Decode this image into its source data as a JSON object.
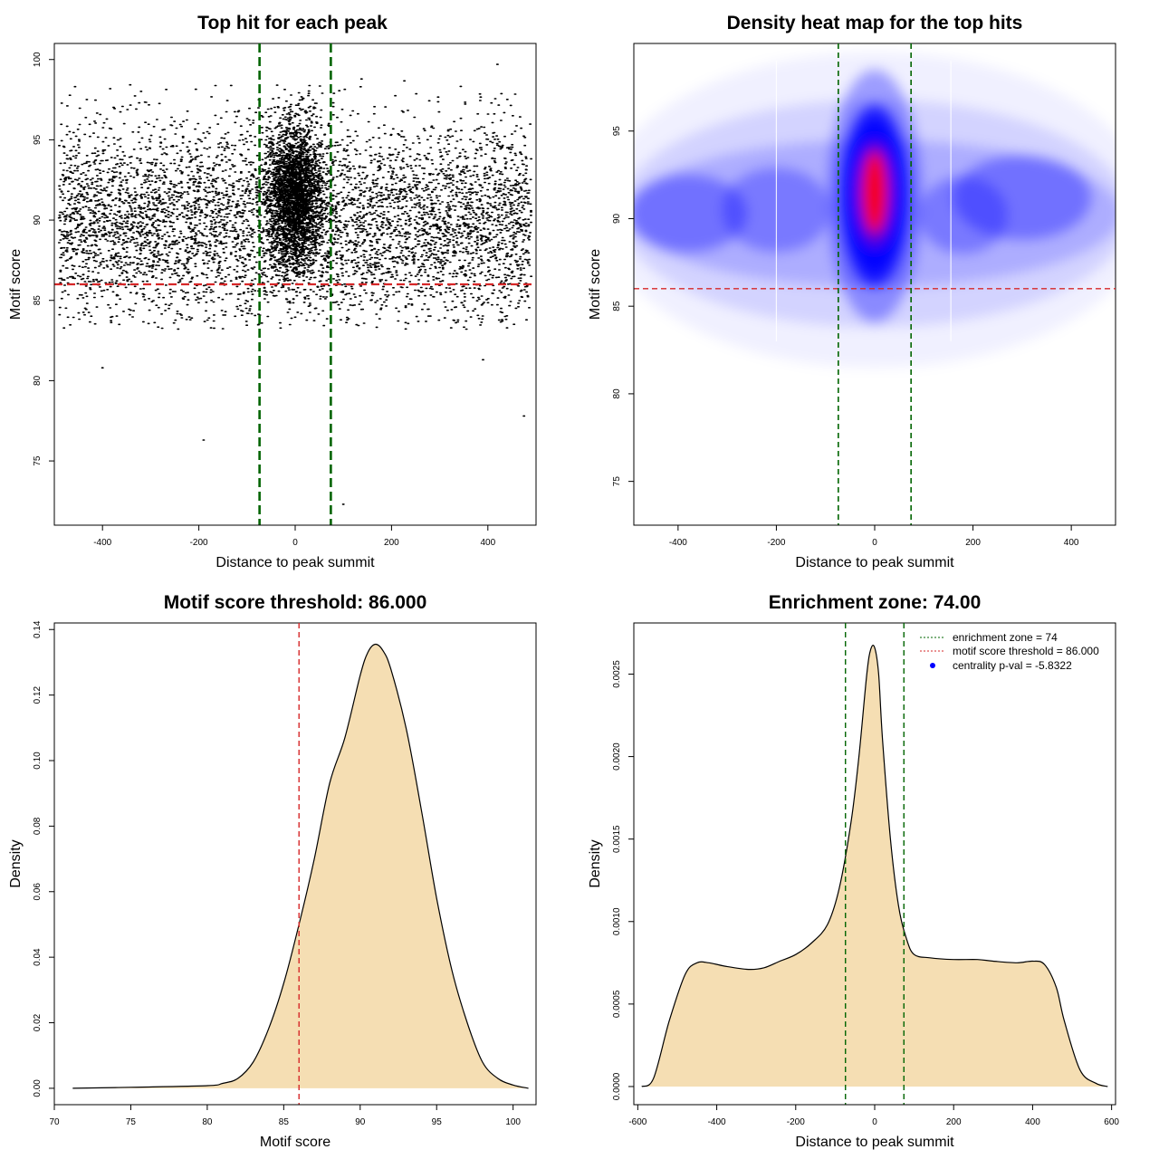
{
  "colors": {
    "threshold": "#d62728",
    "zone": "#006400",
    "fill": "#f5deb3",
    "points": "#000000",
    "heat_low": "#0000ff",
    "heat_high": "#ff0000"
  },
  "chart_data": [
    {
      "type": "scatter",
      "title": "Top hit for each peak",
      "xlabel": "Distance to peak summit",
      "ylabel": "Motif score",
      "xlim": [
        -500,
        500
      ],
      "ylim": [
        71,
        101
      ],
      "xticks": [
        -400,
        -200,
        0,
        200,
        400
      ],
      "yticks": [
        75,
        80,
        85,
        90,
        95,
        100
      ],
      "hlines": [
        86
      ],
      "vlines": [
        -74,
        74
      ],
      "point_summary": {
        "n_background": 9000,
        "n_central": 3000,
        "background_x_range": [
          -490,
          490
        ],
        "background_score_mean": 90,
        "background_score_sd": 3,
        "central_x_sd": 28,
        "central_score_mean": 91.5,
        "central_score_sd": 2.2
      },
      "outliers": [
        [
          -400,
          80.8
        ],
        [
          -190,
          76.3
        ],
        [
          100,
          72.3
        ],
        [
          420,
          99.7
        ],
        [
          475,
          77.8
        ],
        [
          390,
          81.3
        ]
      ]
    },
    {
      "type": "heatmap",
      "title": "Density heat map for the top hits",
      "xlabel": "Distance to peak summit",
      "ylabel": "Motif score",
      "xlim": [
        -490,
        490
      ],
      "ylim": [
        72.5,
        100
      ],
      "xticks": [
        -400,
        -200,
        0,
        200,
        400
      ],
      "yticks": [
        75,
        80,
        85,
        90,
        95
      ],
      "hlines": [
        86
      ],
      "vlines": [
        -74,
        74
      ],
      "faint_vlines": [
        -200,
        155
      ]
    },
    {
      "type": "area",
      "title": "Motif score threshold: 86.000",
      "xlabel": "Motif score",
      "ylabel": "Density",
      "xlim": [
        70,
        101.5
      ],
      "ylim": [
        -0.005,
        0.142
      ],
      "xticks": [
        70,
        75,
        80,
        85,
        90,
        95,
        100
      ],
      "yticks": [
        0.0,
        0.02,
        0.04,
        0.06,
        0.08,
        0.1,
        0.12,
        0.14
      ],
      "ytick_labels": [
        "0.00",
        "0.02",
        "0.04",
        "0.06",
        "0.08",
        "0.10",
        "0.12",
        "0.14"
      ],
      "vlines": [
        86
      ],
      "x": [
        71.2,
        75,
        80,
        81,
        82,
        83,
        84,
        85,
        86,
        87,
        88,
        89,
        90,
        90.5,
        91,
        91.5,
        92,
        93,
        94,
        95,
        96,
        97,
        98,
        99,
        100,
        101
      ],
      "y": [
        0.0,
        0.0003,
        0.0008,
        0.0015,
        0.003,
        0.008,
        0.018,
        0.032,
        0.05,
        0.07,
        0.093,
        0.107,
        0.126,
        0.133,
        0.1355,
        0.1335,
        0.128,
        0.11,
        0.085,
        0.058,
        0.036,
        0.02,
        0.008,
        0.003,
        0.001,
        0.0
      ]
    },
    {
      "type": "area",
      "title": "Enrichment zone: 74.00",
      "xlabel": "Distance to peak summit",
      "ylabel": "Density",
      "xlim": [
        -610,
        610
      ],
      "ylim": [
        -0.00011,
        0.00281
      ],
      "xticks": [
        -600,
        -400,
        -200,
        0,
        200,
        400,
        600
      ],
      "yticks": [
        0.0,
        0.0005,
        0.001,
        0.0015,
        0.002,
        0.0025
      ],
      "ytick_labels": [
        "0.0000",
        "0.0005",
        "0.0010",
        "0.0015",
        "0.0020",
        "0.0025"
      ],
      "vlines": [
        -74,
        74
      ],
      "x": [
        -590,
        -560,
        -520,
        -480,
        -450,
        -420,
        -380,
        -320,
        -280,
        -240,
        -200,
        -160,
        -120,
        -90,
        -60,
        -40,
        -20,
        -10,
        0,
        10,
        20,
        40,
        60,
        80,
        100,
        140,
        200,
        260,
        300,
        360,
        400,
        430,
        460,
        480,
        520,
        560,
        590
      ],
      "y": [
        0.0,
        5e-05,
        0.0004,
        0.00068,
        0.00075,
        0.00075,
        0.00073,
        0.00071,
        0.00072,
        0.00076,
        0.0008,
        0.00087,
        0.00098,
        0.0012,
        0.0016,
        0.002,
        0.0025,
        0.00265,
        0.00266,
        0.0025,
        0.0021,
        0.0015,
        0.0011,
        0.0009,
        0.0008,
        0.00078,
        0.00077,
        0.00077,
        0.00076,
        0.00075,
        0.00076,
        0.00074,
        0.0006,
        0.0004,
        0.0001,
        2e-05,
        0.0
      ],
      "legend": [
        {
          "label": "enrichment zone = 74",
          "style": "dotted-green"
        },
        {
          "label": "motif score threshold = 86.000",
          "style": "dotted-red"
        },
        {
          "label": "centrality p-val = -5.8322",
          "style": "blue-dot"
        }
      ],
      "legend_position": "top-right"
    }
  ]
}
